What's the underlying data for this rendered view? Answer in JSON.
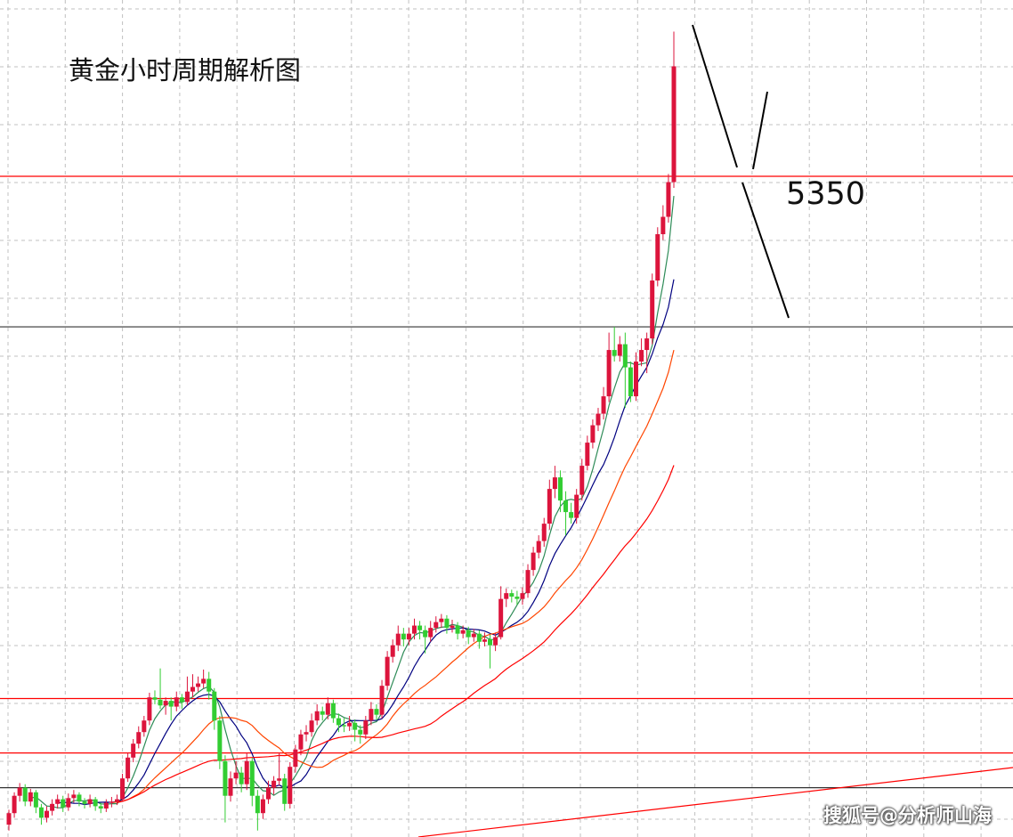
{
  "chart_data": {
    "type": "candlestick",
    "title": "黄金小时周期解析图",
    "xlabel": "",
    "ylabel": "",
    "grid": true,
    "up_color": "#dc143c",
    "down_color": "#32cd32",
    "ylim": [
      4760,
      5480
    ],
    "candles_ohlc": [
      [
        4790,
        4803,
        4785,
        4800
      ],
      [
        4800,
        4818,
        4796,
        4815
      ],
      [
        4815,
        4826,
        4810,
        4822
      ],
      [
        4822,
        4825,
        4806,
        4810
      ],
      [
        4810,
        4821,
        4806,
        4818
      ],
      [
        4818,
        4820,
        4800,
        4805
      ],
      [
        4805,
        4808,
        4790,
        4796
      ],
      [
        4796,
        4806,
        4792,
        4802
      ],
      [
        4802,
        4812,
        4798,
        4808
      ],
      [
        4808,
        4816,
        4804,
        4812
      ],
      [
        4812,
        4815,
        4801,
        4805
      ],
      [
        4805,
        4817,
        4802,
        4813
      ],
      [
        4813,
        4820,
        4809,
        4816
      ],
      [
        4816,
        4818,
        4806,
        4810
      ],
      [
        4810,
        4813,
        4804,
        4808
      ],
      [
        4808,
        4816,
        4805,
        4812
      ],
      [
        4812,
        4814,
        4802,
        4806
      ],
      [
        4806,
        4809,
        4800,
        4804
      ],
      [
        4804,
        4812,
        4801,
        4809
      ],
      [
        4809,
        4814,
        4805,
        4810
      ],
      [
        4810,
        4816,
        4807,
        4812
      ],
      [
        4812,
        4834,
        4810,
        4830
      ],
      [
        4830,
        4852,
        4827,
        4848
      ],
      [
        4848,
        4864,
        4844,
        4860
      ],
      [
        4860,
        4875,
        4856,
        4870
      ],
      [
        4870,
        4884,
        4866,
        4880
      ],
      [
        4880,
        4904,
        4876,
        4900
      ],
      [
        4900,
        4906,
        4894,
        4898
      ],
      [
        4898,
        4925,
        4890,
        4893
      ],
      [
        4893,
        4900,
        4885,
        4897
      ],
      [
        4897,
        4900,
        4880,
        4892
      ],
      [
        4892,
        4905,
        4888,
        4900
      ],
      [
        4900,
        4903,
        4890,
        4896
      ],
      [
        4896,
        4918,
        4893,
        4905
      ],
      [
        4905,
        4920,
        4900,
        4909
      ],
      [
        4909,
        4918,
        4905,
        4912
      ],
      [
        4912,
        4924,
        4908,
        4916
      ],
      [
        4916,
        4922,
        4898,
        4905
      ],
      [
        4905,
        4908,
        4872,
        4880
      ],
      [
        4880,
        4884,
        4838,
        4845
      ],
      [
        4845,
        4850,
        4792,
        4815
      ],
      [
        4815,
        4836,
        4810,
        4830
      ],
      [
        4830,
        4845,
        4825,
        4835
      ],
      [
        4835,
        4840,
        4818,
        4825
      ],
      [
        4825,
        4852,
        4820,
        4845
      ],
      [
        4845,
        4848,
        4806,
        4815
      ],
      [
        4815,
        4820,
        4785,
        4800
      ],
      [
        4800,
        4816,
        4795,
        4812
      ],
      [
        4812,
        4828,
        4808,
        4822
      ],
      [
        4822,
        4832,
        4816,
        4828
      ],
      [
        4828,
        4852,
        4824,
        4830
      ],
      [
        4830,
        4834,
        4802,
        4808
      ],
      [
        4808,
        4844,
        4804,
        4840
      ],
      [
        4840,
        4859,
        4835,
        4855
      ],
      [
        4855,
        4872,
        4850,
        4868
      ],
      [
        4868,
        4876,
        4862,
        4870
      ],
      [
        4870,
        4886,
        4866,
        4880
      ],
      [
        4880,
        4894,
        4876,
        4888
      ],
      [
        4888,
        4892,
        4880,
        4885
      ],
      [
        4885,
        4900,
        4881,
        4895
      ],
      [
        4895,
        4898,
        4878,
        4882
      ],
      [
        4882,
        4886,
        4870,
        4876
      ],
      [
        4876,
        4882,
        4870,
        4875
      ],
      [
        4875,
        4884,
        4871,
        4878
      ],
      [
        4878,
        4881,
        4862,
        4872
      ],
      [
        4872,
        4876,
        4860,
        4868
      ],
      [
        4868,
        4884,
        4864,
        4880
      ],
      [
        4880,
        4896,
        4876,
        4890
      ],
      [
        4890,
        4894,
        4880,
        4885
      ],
      [
        4885,
        4915,
        4882,
        4910
      ],
      [
        4910,
        4940,
        4906,
        4935
      ],
      [
        4935,
        4950,
        4930,
        4945
      ],
      [
        4945,
        4962,
        4940,
        4955
      ],
      [
        4955,
        4960,
        4944,
        4950
      ],
      [
        4950,
        4960,
        4945,
        4955
      ],
      [
        4955,
        4968,
        4950,
        4962
      ],
      [
        4962,
        4966,
        4950,
        4958
      ],
      [
        4958,
        4962,
        4938,
        4952
      ],
      [
        4952,
        4966,
        4948,
        4960
      ],
      [
        4960,
        4970,
        4956,
        4965
      ],
      [
        4965,
        4972,
        4960,
        4968
      ],
      [
        4968,
        4971,
        4955,
        4960
      ],
      [
        4960,
        4967,
        4956,
        4962
      ],
      [
        4962,
        4965,
        4950,
        4955
      ],
      [
        4955,
        4962,
        4951,
        4958
      ],
      [
        4958,
        4961,
        4946,
        4952
      ],
      [
        4952,
        4959,
        4948,
        4955
      ],
      [
        4955,
        4958,
        4942,
        4948
      ],
      [
        4948,
        4956,
        4944,
        4950
      ],
      [
        4950,
        4954,
        4925,
        4945
      ],
      [
        4945,
        4956,
        4940,
        4952
      ],
      [
        4952,
        4996,
        4950,
        4985
      ],
      [
        4985,
        4994,
        4978,
        4990
      ],
      [
        4990,
        4993,
        4982,
        4987
      ],
      [
        4987,
        4992,
        4980,
        4985
      ],
      [
        4985,
        4995,
        4980,
        4990
      ],
      [
        4990,
        5015,
        4986,
        5010
      ],
      [
        5010,
        5030,
        5005,
        5025
      ],
      [
        5025,
        5040,
        5020,
        5035
      ],
      [
        5035,
        5055,
        5030,
        5050
      ],
      [
        5050,
        5088,
        5045,
        5080
      ],
      [
        5080,
        5100,
        5072,
        5090
      ],
      [
        5090,
        5096,
        5060,
        5070
      ],
      [
        5070,
        5078,
        5040,
        5060
      ],
      [
        5060,
        5068,
        5050,
        5055
      ],
      [
        5055,
        5080,
        5050,
        5075
      ],
      [
        5075,
        5106,
        5070,
        5100
      ],
      [
        5100,
        5126,
        5096,
        5120
      ],
      [
        5120,
        5140,
        5115,
        5135
      ],
      [
        5135,
        5150,
        5130,
        5145
      ],
      [
        5145,
        5168,
        5140,
        5160
      ],
      [
        5160,
        5215,
        5155,
        5200
      ],
      [
        5200,
        5220,
        5190,
        5195
      ],
      [
        5195,
        5212,
        5190,
        5205
      ],
      [
        5205,
        5215,
        5150,
        5185
      ],
      [
        5185,
        5190,
        5155,
        5160
      ],
      [
        5160,
        5198,
        5156,
        5190
      ],
      [
        5190,
        5210,
        5186,
        5200
      ],
      [
        5200,
        5215,
        5180,
        5210
      ],
      [
        5210,
        5266,
        5205,
        5260
      ],
      [
        5260,
        5306,
        5255,
        5300
      ],
      [
        5300,
        5325,
        5295,
        5315
      ],
      [
        5315,
        5352,
        5310,
        5345
      ],
      [
        5345,
        5475,
        5340,
        5445
      ]
    ],
    "moving_averages": [
      {
        "color": "#2e8b57"
      },
      {
        "color": "#000080"
      },
      {
        "color": "#ff4500"
      },
      {
        "color": "#ff0000"
      }
    ],
    "horizontal_levels": [
      {
        "value": 5350,
        "color": "#ff0000"
      },
      {
        "value": 5220,
        "color": "#333333"
      },
      {
        "value": 4899,
        "color": "#ff0000"
      },
      {
        "value": 4852,
        "color": "#ff0000"
      },
      {
        "value": 4822,
        "color": "#333333"
      }
    ],
    "annotations": {
      "level_label": "5350"
    }
  },
  "watermark": "搜狐号@分析师山海"
}
